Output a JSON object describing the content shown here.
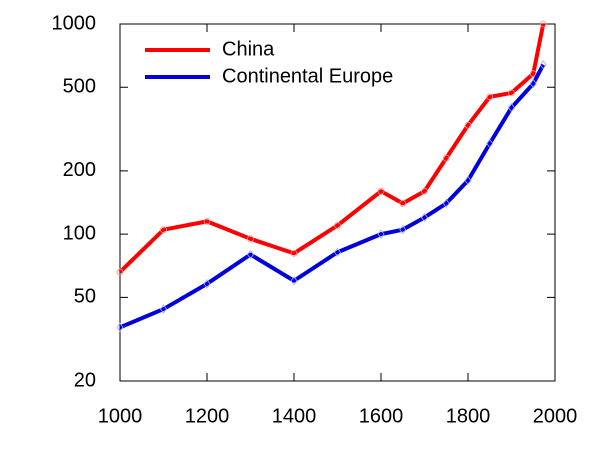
{
  "chart_data": {
    "type": "line",
    "x": [
      1000,
      1100,
      1200,
      1300,
      1400,
      1500,
      1600,
      1650,
      1700,
      1750,
      1800,
      1850,
      1900,
      1950,
      1973
    ],
    "series": [
      {
        "name": "China",
        "color": "#ff0000",
        "values": [
          66,
          105,
          115,
          95,
          81,
          110,
          160,
          140,
          160,
          230,
          330,
          450,
          470,
          580,
          1000
        ]
      },
      {
        "name": "Continental Europe",
        "color": "#0000dd",
        "values": [
          36,
          44,
          58,
          80,
          60,
          82,
          100,
          105,
          120,
          140,
          180,
          270,
          400,
          520,
          640
        ]
      }
    ],
    "xlim": [
      1000,
      2000
    ],
    "xticks": [
      1000,
      1200,
      1400,
      1600,
      1800,
      2000
    ],
    "ylim": [
      20,
      1000
    ],
    "yticks": [
      20,
      50,
      100,
      200,
      500,
      1000
    ],
    "log_y": true,
    "legend": "upper left"
  }
}
